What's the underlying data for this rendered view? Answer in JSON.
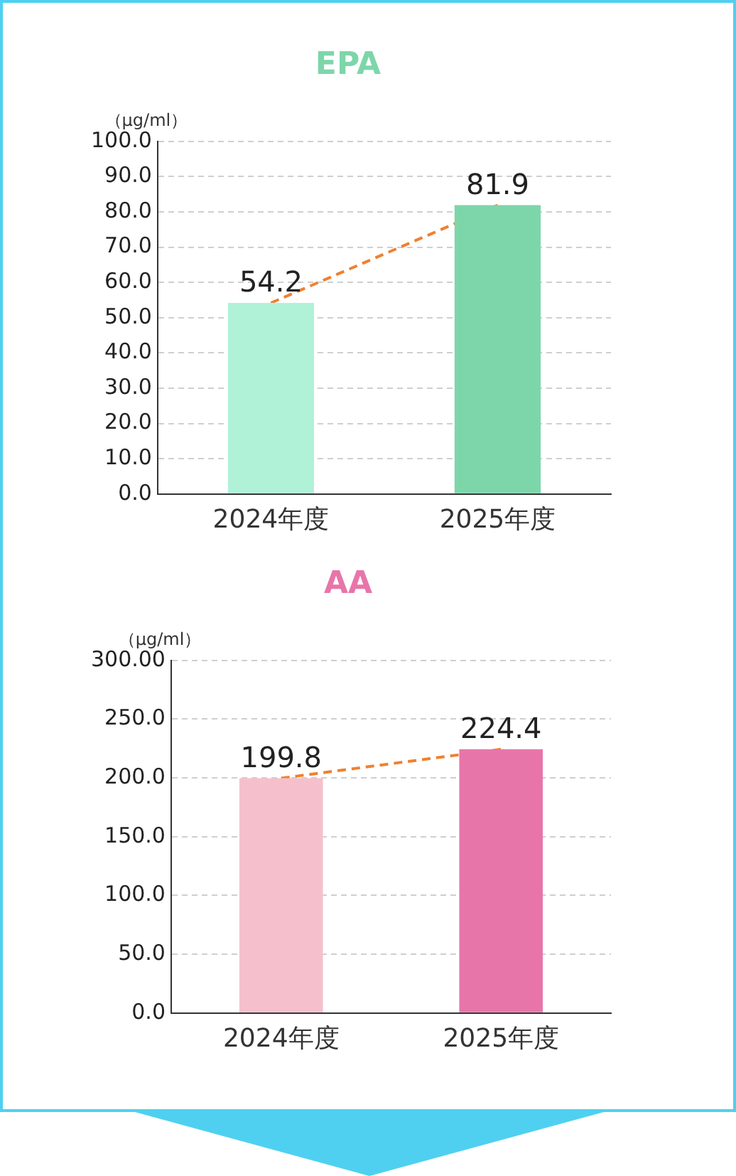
{
  "chart_data": [
    {
      "type": "bar",
      "title": "EPA",
      "ylabel": "（μg/ml）",
      "categories": [
        "2024年度",
        "2025年度"
      ],
      "series": [
        {
          "colors": [
            "#b0f2d8",
            "#7dd6aa"
          ],
          "values": [
            54.2,
            81.9
          ],
          "value_labels": [
            "54.2",
            "81.9"
          ]
        },
        {
          "type": "line",
          "color": "#f08030",
          "line_style": "dashed",
          "values": [
            54.2,
            81.9
          ]
        }
      ],
      "ylim": [
        0,
        100
      ],
      "yticks": [
        {
          "value": 0,
          "label": "0.0"
        },
        {
          "value": 10,
          "label": "10.0"
        },
        {
          "value": 20,
          "label": "20.0"
        },
        {
          "value": 30,
          "label": "30.0"
        },
        {
          "value": 40,
          "label": "40.0"
        },
        {
          "value": 50,
          "label": "50.0"
        },
        {
          "value": 60,
          "label": "60.0"
        },
        {
          "value": 70,
          "label": "70.0"
        },
        {
          "value": 80,
          "label": "80.0"
        },
        {
          "value": 90,
          "label": "90.0"
        },
        {
          "value": 100,
          "label": "100.0"
        }
      ],
      "grid": "y"
    },
    {
      "type": "bar",
      "title": "AA",
      "ylabel": "（μg/ml）",
      "categories": [
        "2024年度",
        "2025年度"
      ],
      "series": [
        {
          "colors": [
            "#f5c0cc",
            "#e875aa"
          ],
          "values": [
            199.8,
            224.4
          ],
          "value_labels": [
            "199.8",
            "224.4"
          ]
        },
        {
          "type": "line",
          "color": "#f08030",
          "line_style": "dashed",
          "values": [
            199.8,
            224.4
          ]
        }
      ],
      "ylim": [
        0,
        300
      ],
      "yticks": [
        {
          "value": 0,
          "label": "0.0"
        },
        {
          "value": 50,
          "label": "50.0"
        },
        {
          "value": 100,
          "label": "100.0"
        },
        {
          "value": 150,
          "label": "150.0"
        },
        {
          "value": 200,
          "label": "200.0"
        },
        {
          "value": 250,
          "label": "250.0"
        },
        {
          "value": 300,
          "label": "300.00"
        }
      ],
      "grid": "y"
    }
  ]
}
